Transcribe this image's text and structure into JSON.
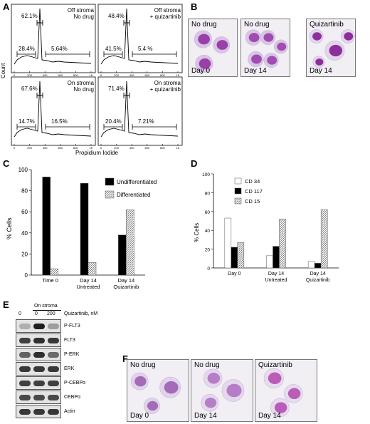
{
  "panels": {
    "A": "A",
    "B": "B",
    "C": "C",
    "D": "D",
    "E": "E",
    "F": "F"
  },
  "panel_a": {
    "y_label": "Count",
    "x_label": "Propidium Iodide",
    "x_ticks": [
      "0",
      "200",
      "400",
      "600",
      "800",
      "1K"
    ],
    "histograms": [
      {
        "title1": "Off stroma",
        "title2": "No drug",
        "peak": "62.1%",
        "left": "28.4%",
        "right": "5.64%"
      },
      {
        "title1": "Off stroma",
        "title2": "+ quizartinib",
        "peak": "48.4%",
        "left": "41.5%",
        "right": "5.4 %"
      },
      {
        "title1": "On stroma",
        "title2": "No drug",
        "peak": "67.6%",
        "left": "14.7%",
        "right": "16.5%"
      },
      {
        "title1": "On stroma",
        "title2": "+ quizartinib",
        "peak": "71.4%",
        "left": "20.4%",
        "right": "7.21%"
      }
    ]
  },
  "panel_b": {
    "images": [
      {
        "top": "No drug",
        "bottom": "Day 0"
      },
      {
        "top": "No drug",
        "bottom": "Day 14"
      },
      {
        "top": "Quizartinib",
        "bottom": "Day 14"
      }
    ]
  },
  "panel_e": {
    "header": "On stroma",
    "lanes": [
      "0",
      "0",
      "200"
    ],
    "treatment": "Quizartinib, nM",
    "rows": [
      {
        "label": "P-FLT3",
        "bands": [
          0.15,
          1.0,
          0.25
        ]
      },
      {
        "label": "FLT3",
        "bands": [
          0.8,
          0.9,
          0.85
        ]
      },
      {
        "label": "P-ERK",
        "bands": [
          0.6,
          0.9,
          0.55
        ]
      },
      {
        "label": "ERK",
        "bands": [
          0.85,
          0.85,
          0.85
        ]
      },
      {
        "label": "P-CEBPα",
        "bands": [
          0.8,
          0.8,
          0.8
        ]
      },
      {
        "label": "CEBPα",
        "bands": [
          0.75,
          0.75,
          0.75
        ]
      },
      {
        "label": "Actin",
        "bands": [
          0.85,
          0.85,
          0.85
        ]
      }
    ]
  },
  "panel_f": {
    "images": [
      {
        "top": "No drug",
        "bottom": "Day 0"
      },
      {
        "top": "No drug",
        "bottom": "Day 14"
      },
      {
        "top": "Quizartinib",
        "bottom": "Day 14"
      }
    ]
  },
  "chart_data": [
    {
      "type": "bar",
      "panel": "C",
      "categories": [
        [
          "Time 0"
        ],
        [
          "Day 14",
          "Untreated"
        ],
        [
          "Day 14",
          "Quizartinib"
        ]
      ],
      "series": [
        {
          "name": "Undifferentiated",
          "values": [
            93,
            87,
            38
          ],
          "color": "#000000"
        },
        {
          "name": "Differentiated",
          "values": [
            6,
            12,
            62
          ],
          "color": "hatch"
        }
      ],
      "ylabel": "% Cells",
      "ylim": [
        0,
        100
      ],
      "yticks": [
        "0",
        "20",
        "40",
        "60",
        "80",
        "100"
      ],
      "legend": "top-right"
    },
    {
      "type": "bar",
      "panel": "D",
      "categories": [
        [
          "Day 0"
        ],
        [
          "Day 14",
          "Untreated"
        ],
        [
          "Day 14",
          "Quizartinib"
        ]
      ],
      "series": [
        {
          "name": "CD 34",
          "values": [
            53,
            13,
            7
          ],
          "color": "#ffffff"
        },
        {
          "name": "CD 117",
          "values": [
            22,
            23,
            5
          ],
          "color": "#000000"
        },
        {
          "name": "CD 15",
          "values": [
            27,
            52,
            62
          ],
          "color": "hatch"
        }
      ],
      "ylabel": "% Cells",
      "ylim": [
        0,
        100
      ],
      "yticks": [
        "0",
        "20",
        "40",
        "60",
        "80",
        "100"
      ],
      "legend": "top-left"
    }
  ]
}
